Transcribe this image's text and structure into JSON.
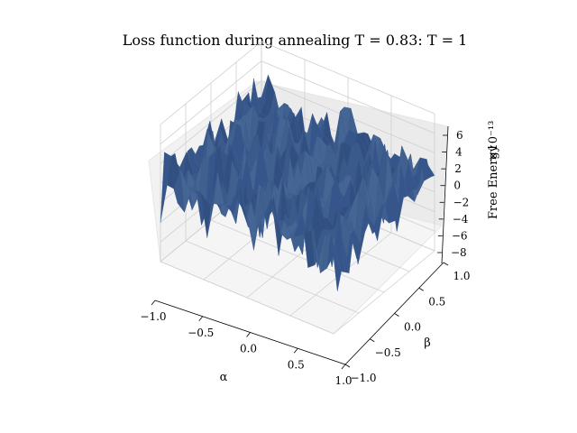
{
  "chart_data": {
    "type": "surface3d",
    "title": "Loss function during annealing T = 0.83: T = 1",
    "xlabel": "α",
    "ylabel": "β",
    "zlabel": "Free Energy",
    "zscale_label": "×10⁻¹³",
    "xlim": [
      -1.0,
      1.0
    ],
    "ylim": [
      -1.0,
      1.0
    ],
    "zlim": [
      -8,
      6
    ],
    "x_ticks": [
      "−1.0",
      "−0.5",
      "0.0",
      "0.5",
      "1.0"
    ],
    "y_ticks": [
      "−1.0",
      "−0.5",
      "0.0",
      "0.5",
      "1.0"
    ],
    "z_ticks": [
      "−8",
      "−6",
      "−4",
      "−2",
      "0",
      "2",
      "4",
      "6"
    ],
    "surface_color": "#3b5a8c",
    "surface_mean": 0,
    "surface_noise_amplitude": 4,
    "grid": true
  }
}
